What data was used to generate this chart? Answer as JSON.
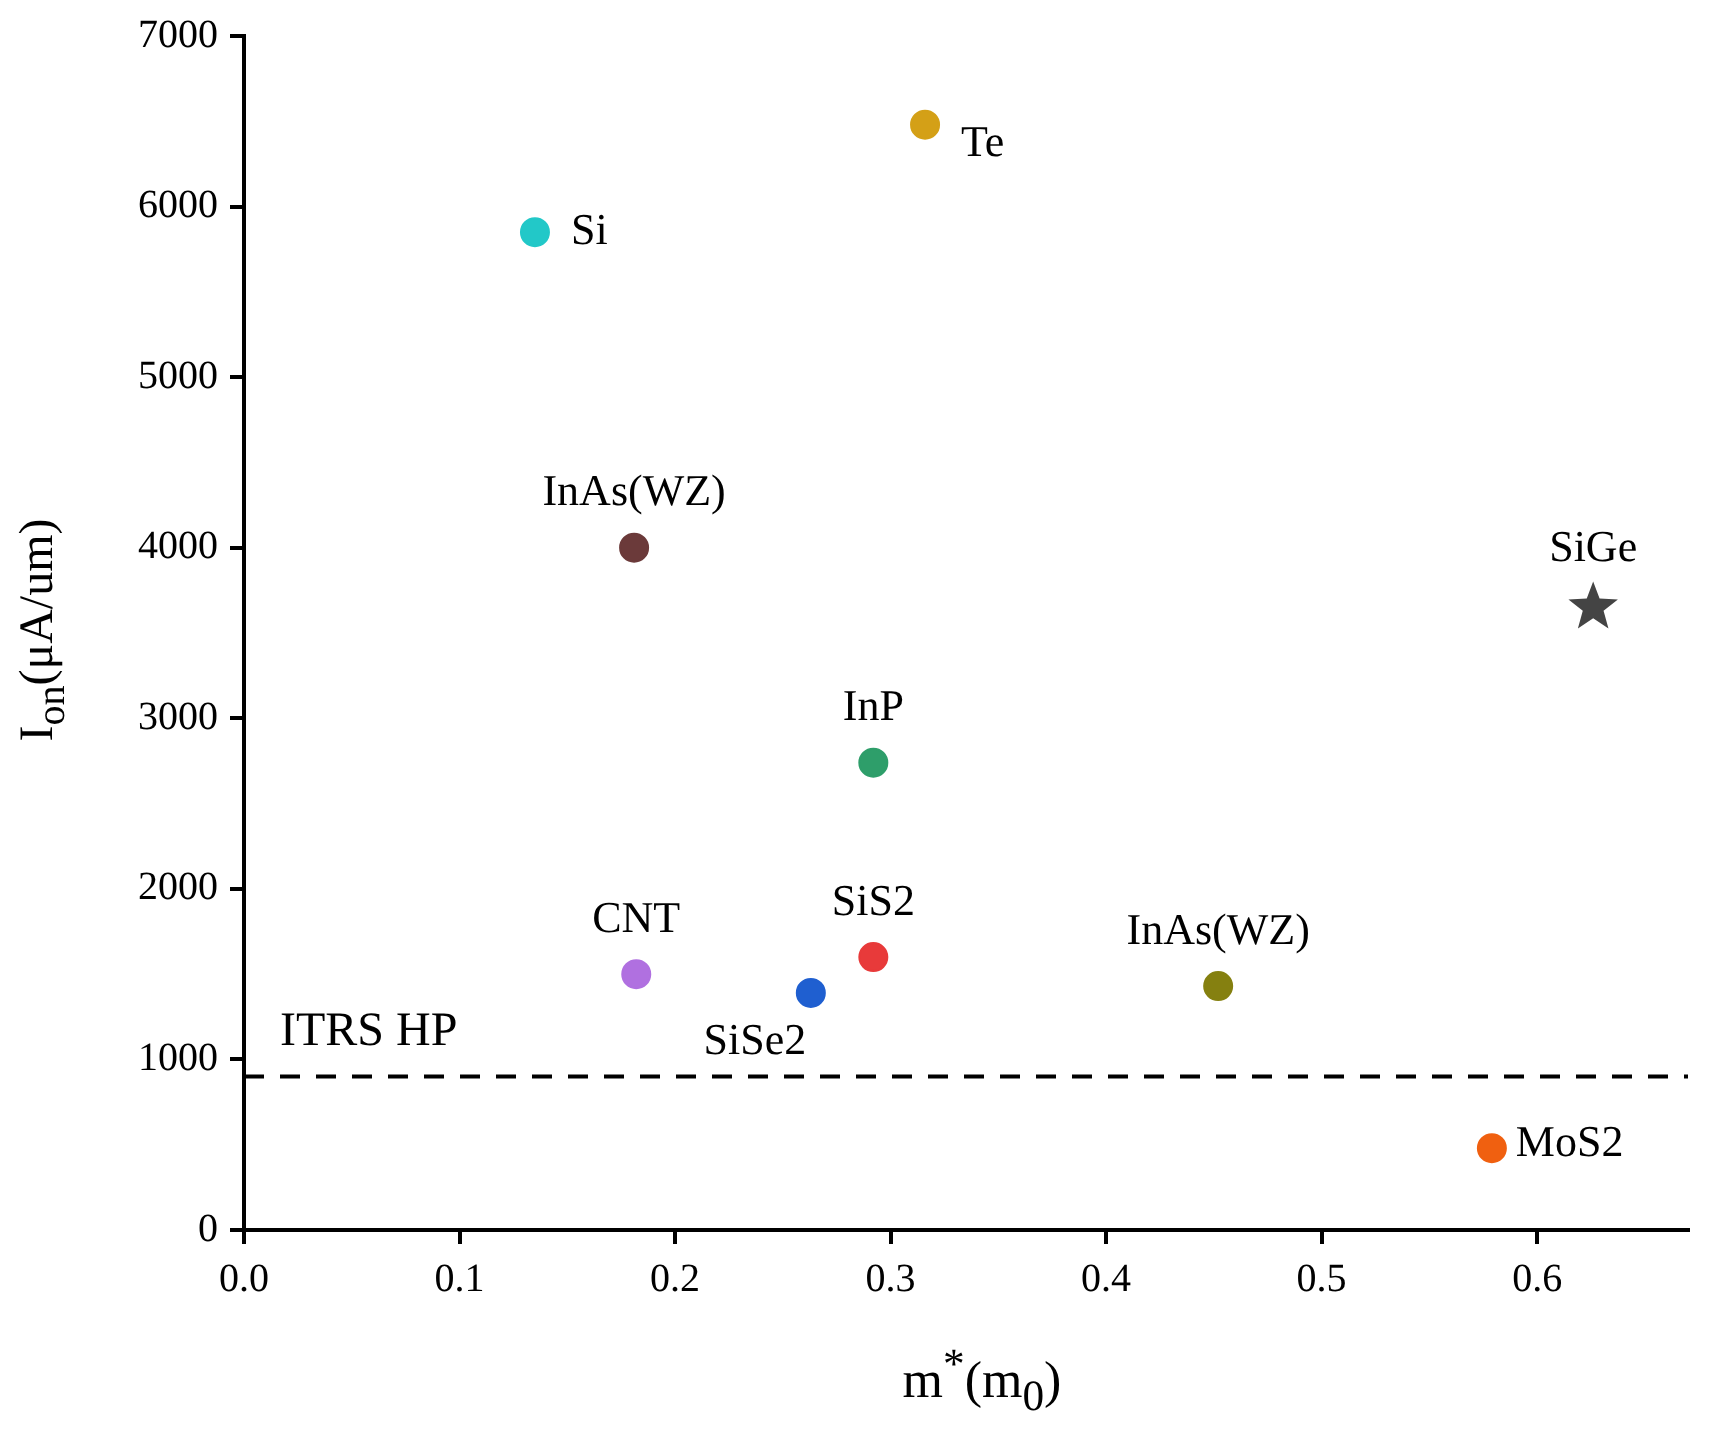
{
  "chart_data": {
    "type": "scatter",
    "xlabel": "m$^{*}$(m$_{0}$)",
    "ylabel": "I$_{on}$(μA/um)",
    "xlim": [
      0,
      0.67
    ],
    "xticks": [
      {
        "value": 0,
        "label": "0.0"
      },
      0.1,
      0.2,
      0.3,
      0.4,
      0.5,
      0.6
    ],
    "ylim": [
      0,
      7000
    ],
    "yticks": [
      0,
      1000,
      2000,
      3000,
      4000,
      5000,
      6000,
      7000
    ],
    "grid": false,
    "legend": false,
    "marker": "circle",
    "series": [
      {
        "name": "Si",
        "color": "#22c8c8",
        "x": [
          0.135
        ],
        "values": [
          5850
        ]
      },
      {
        "name": "Te",
        "color": "#d4a017",
        "x": [
          0.316
        ],
        "values": [
          6480
        ]
      },
      {
        "name": "InAs(WZ)",
        "color": "#6b3a3a",
        "x": [
          0.181
        ],
        "values": [
          4000
        ]
      },
      {
        "name": "SiGe",
        "color": "#444444",
        "x": [
          0.626
        ],
        "values": [
          3650
        ],
        "marker": "star"
      },
      {
        "name": "InP",
        "color": "#2e9e6a",
        "x": [
          0.292
        ],
        "values": [
          2740
        ]
      },
      {
        "name": "SiS2",
        "color": "#e83a3a",
        "x": [
          0.292
        ],
        "values": [
          1600
        ]
      },
      {
        "name": "CNT",
        "color": "#b070e0",
        "x": [
          0.182
        ],
        "values": [
          1500
        ]
      },
      {
        "name": "SiSe2",
        "color": "#1f5fd0",
        "x": [
          0.263
        ],
        "values": [
          1390
        ]
      },
      {
        "name": "InAs(WZ)",
        "color": "#858010",
        "x": [
          0.452
        ],
        "values": [
          1430
        ]
      },
      {
        "name": "MoS2",
        "color": "#f06010",
        "x": [
          0.579
        ],
        "values": [
          480
        ]
      }
    ],
    "ref_lines": [
      {
        "axis": "y",
        "value": 900,
        "label": "ITRS HP",
        "line_style": "dashed",
        "color": "#000000"
      }
    ]
  }
}
